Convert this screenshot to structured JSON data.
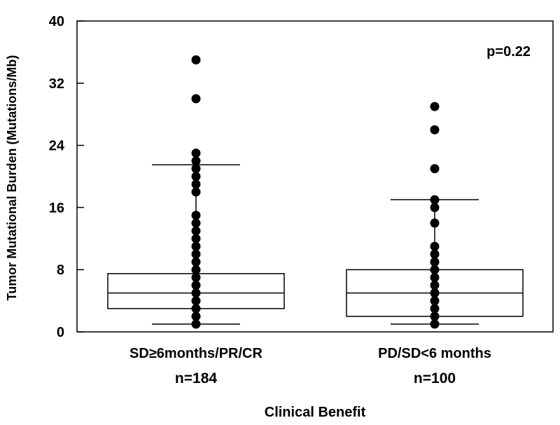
{
  "chart_data": {
    "type": "box",
    "title": "",
    "xlabel": "Clinical Benefit",
    "ylabel": "Tumor Mutational Burden (Mutations/Mb)",
    "ylim": [
      0,
      40
    ],
    "yticks": [
      0,
      8,
      16,
      24,
      32,
      40
    ],
    "annotation": "p=0.22",
    "groups": [
      {
        "name": "SD≥6months/PR/CR",
        "n_label": "n=184",
        "whisker_low": 1,
        "q1": 3,
        "median": 5,
        "q3": 7.5,
        "whisker_high": 21.5,
        "points": [
          1,
          2,
          3,
          4,
          5,
          6,
          7,
          8,
          9,
          10,
          11,
          12,
          13,
          14,
          15,
          18,
          19,
          20,
          21,
          22,
          23,
          30,
          35
        ]
      },
      {
        "name": "PD/SD<6 months",
        "n_label": "n=100",
        "whisker_low": 1,
        "q1": 2,
        "median": 5,
        "q3": 8,
        "whisker_high": 17,
        "points": [
          1,
          2,
          3,
          4,
          5,
          6,
          7,
          8,
          9,
          10,
          11,
          14,
          16,
          17,
          21,
          26,
          29
        ]
      }
    ]
  }
}
